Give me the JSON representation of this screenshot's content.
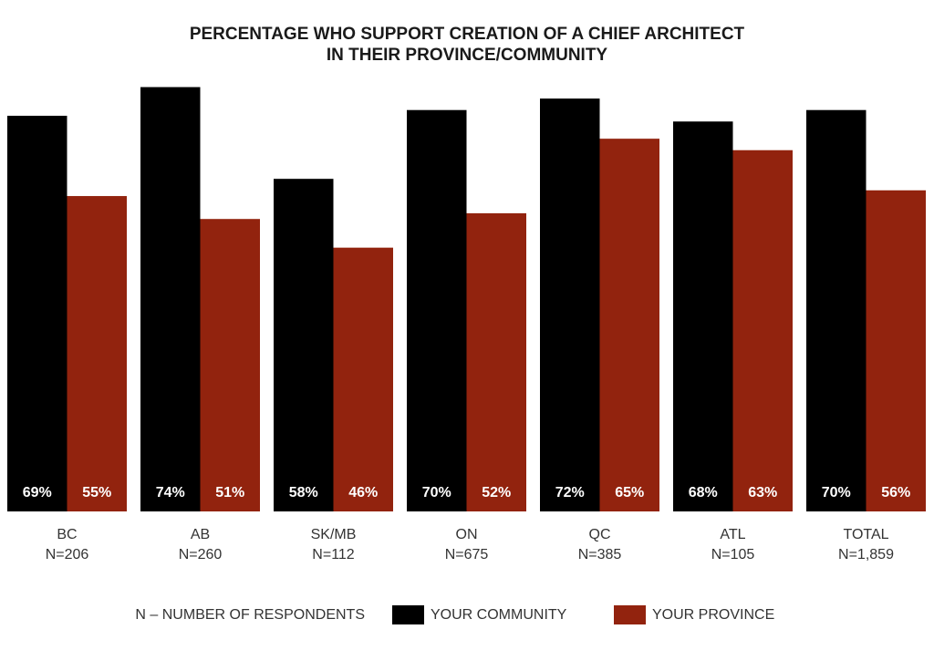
{
  "chart_data": {
    "type": "bar",
    "title": [
      "PERCENTAGE WHO SUPPORT CREATION OF A CHIEF ARCHITECT",
      "IN THEIR PROVINCE/COMMUNITY"
    ],
    "categories": [
      "BC",
      "AB",
      "SK/MB",
      "ON",
      "QC",
      "ATL",
      "TOTAL"
    ],
    "sample_sizes": [
      "N=206",
      "N=260",
      "N=112",
      "N=675",
      "N=385",
      "N=105",
      "N=1,859"
    ],
    "note": "N – NUMBER OF RESPONDENTS",
    "series": [
      {
        "name": "YOUR COMMUNITY",
        "color": "#000000",
        "values": [
          69,
          74,
          58,
          70,
          72,
          68,
          70
        ],
        "value_labels": [
          "69%",
          "74%",
          "58%",
          "70%",
          "72%",
          "68%",
          "70%"
        ]
      },
      {
        "name": "YOUR PROVINCE",
        "color": "#92230e",
        "values": [
          55,
          51,
          46,
          52,
          65,
          63,
          56
        ],
        "value_labels": [
          "55%",
          "51%",
          "46%",
          "52%",
          "65%",
          "63%",
          "56%"
        ]
      }
    ],
    "ylim": [
      0,
      100
    ]
  }
}
